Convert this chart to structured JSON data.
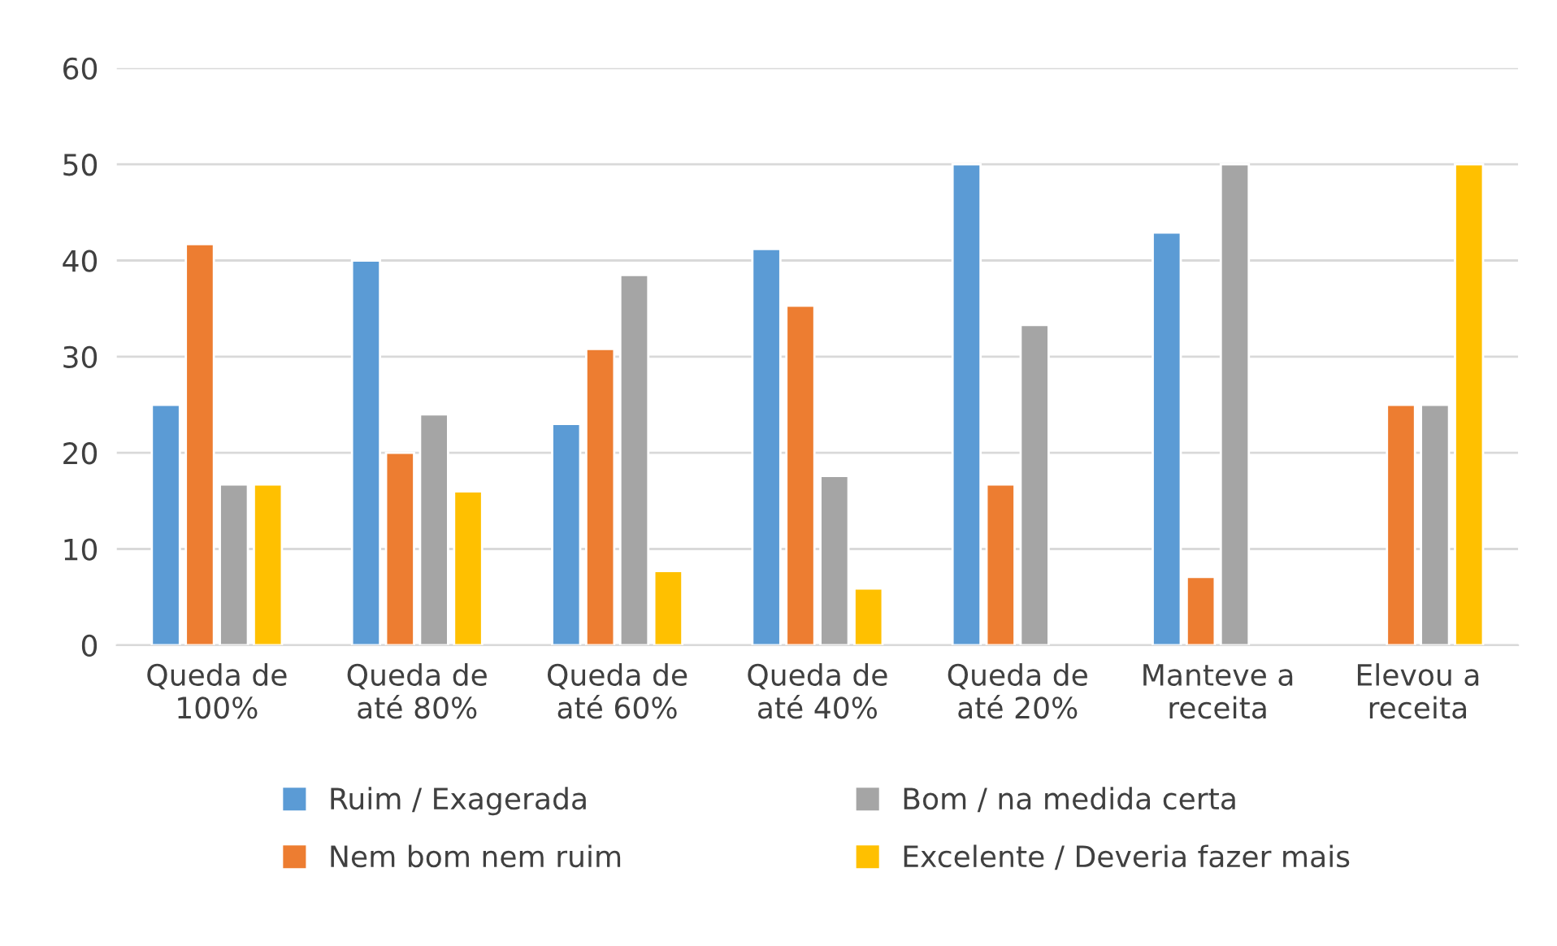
{
  "chart_data": {
    "type": "bar",
    "categories": [
      "Queda de\n100%",
      "Queda de\naté 80%",
      "Queda de\naté 60%",
      "Queda de\naté 40%",
      "Queda de\naté 20%",
      "Manteve a\nreceita",
      "Elevou a\nreceita"
    ],
    "series": [
      {
        "name": "Ruim / Exagerada",
        "color": "#5b9bd5",
        "values": [
          25,
          40,
          23,
          41.2,
          50,
          42.9,
          null
        ]
      },
      {
        "name": "Nem bom nem ruim",
        "color": "#ed7d31",
        "values": [
          41.7,
          20,
          30.8,
          35.3,
          16.7,
          7.1,
          25
        ]
      },
      {
        "name": "Bom / na medida certa",
        "color": "#a5a5a5",
        "values": [
          16.7,
          24,
          38.5,
          17.6,
          33.3,
          50,
          25
        ]
      },
      {
        "name": "Excelente / Deveria fazer mais",
        "color": "#ffc000",
        "values": [
          16.7,
          16,
          7.7,
          5.9,
          null,
          null,
          50
        ]
      }
    ],
    "ylim": [
      0,
      60
    ],
    "yticks": [
      0,
      10,
      20,
      30,
      40,
      50,
      60
    ],
    "grid": "y",
    "legend": "bottom"
  }
}
